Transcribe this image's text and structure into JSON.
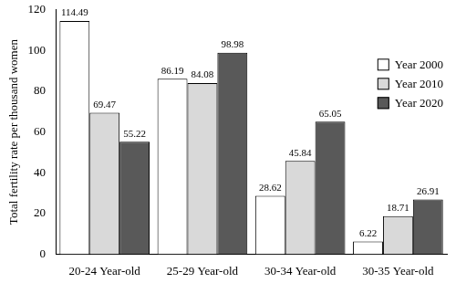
{
  "chart_data": {
    "type": "bar",
    "y_label": "Total fertility rate per thousand women",
    "categories": [
      "20-24 Year-old",
      "25-29 Year-old",
      "30-34 Year-old",
      "30-35 Year-old"
    ],
    "series": [
      {
        "name": "Year 2000",
        "color": "#ffffff",
        "values": [
          114.49,
          86.19,
          28.62,
          6.22
        ]
      },
      {
        "name": "Year 2010",
        "color": "#d9d9d9",
        "values": [
          69.47,
          84.08,
          45.84,
          18.71
        ]
      },
      {
        "name": "Year 2020",
        "color": "#595959",
        "values": [
          55.22,
          98.98,
          65.05,
          26.91
        ]
      }
    ],
    "ylim": [
      0,
      120
    ],
    "yticks": [
      0,
      20,
      40,
      60,
      80,
      100,
      120
    ],
    "grid": false,
    "legend": "upper right",
    "data_labels": true
  }
}
